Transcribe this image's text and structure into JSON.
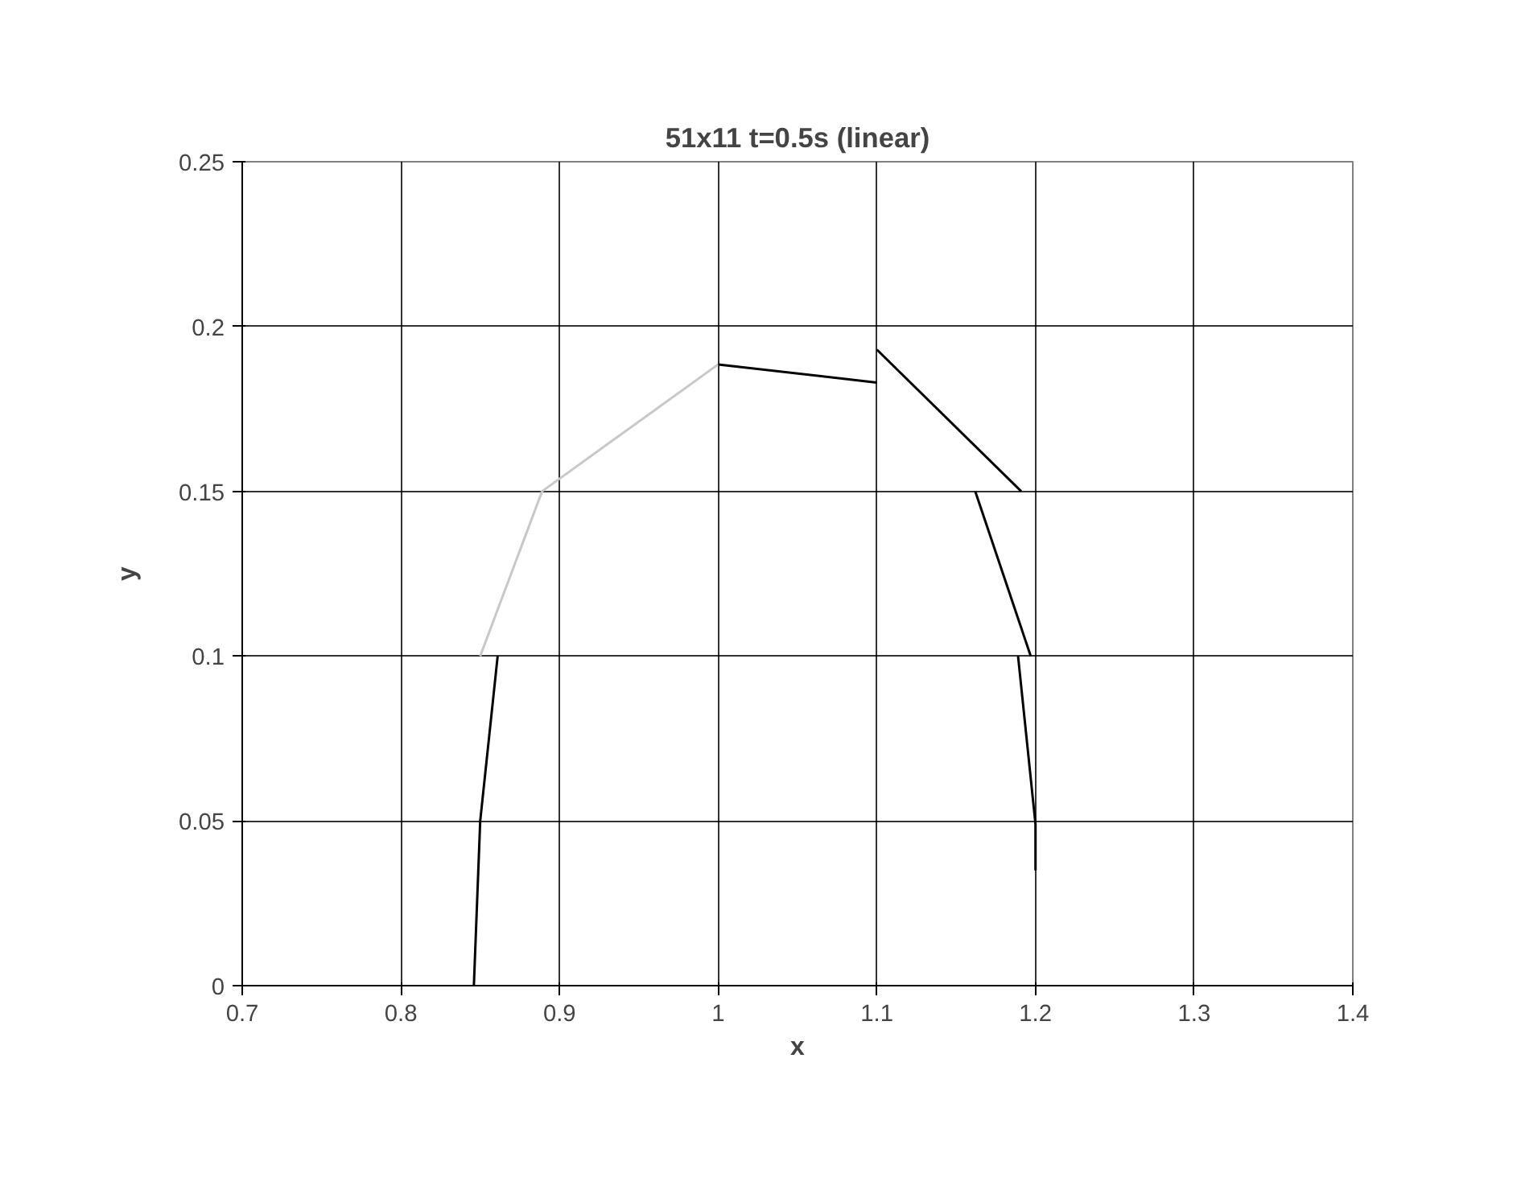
{
  "chart_data": {
    "type": "line",
    "title": "51x11 t=0.5s (linear)",
    "xlabel": "x",
    "ylabel": "y",
    "xlim": [
      0.7,
      1.4
    ],
    "ylim": [
      0,
      0.25
    ],
    "xticks": [
      0.7,
      0.8,
      0.9,
      1,
      1.1,
      1.2,
      1.3,
      1.4
    ],
    "yticks": [
      0,
      0.05,
      0.1,
      0.15,
      0.2,
      0.25
    ],
    "grid": true,
    "series": [
      {
        "color": "#000000",
        "x": [
          0.846,
          0.85,
          0.861
        ],
        "values": [
          0,
          0.05,
          0.1
        ]
      },
      {
        "color": "#c8c8c8",
        "x": [
          0.85,
          0.889
        ],
        "values": [
          0.1,
          0.15
        ]
      },
      {
        "color": "#c8c8c8",
        "x": [
          0.889,
          1.0
        ],
        "values": [
          0.15,
          0.1885
        ]
      },
      {
        "color": "#000000",
        "x": [
          1.0,
          1.1
        ],
        "values": [
          0.1885,
          0.183
        ]
      },
      {
        "color": "#000000",
        "x": [
          1.1,
          1.191
        ],
        "values": [
          0.193,
          0.15
        ]
      },
      {
        "color": "#000000",
        "x": [
          1.162,
          1.197
        ],
        "values": [
          0.15,
          0.1
        ]
      },
      {
        "color": "#000000",
        "x": [
          1.189,
          1.2,
          1.2
        ],
        "values": [
          0.1,
          0.049,
          0.035
        ]
      }
    ]
  }
}
